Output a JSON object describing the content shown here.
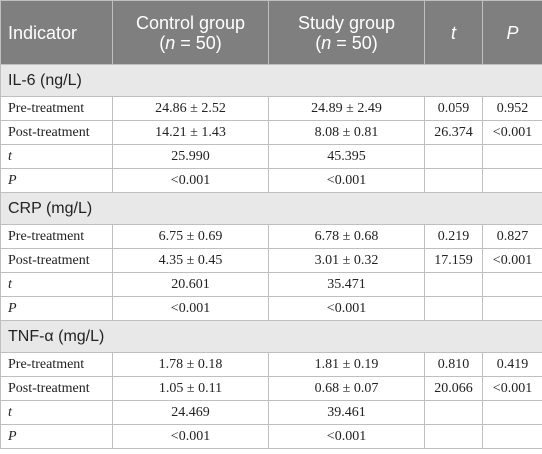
{
  "header": {
    "indicator": "Indicator",
    "control": "Control group",
    "control_n_open": "(",
    "control_n_var": "n",
    "control_n_rest": " = 50)",
    "study": "Study group",
    "study_n_open": "(",
    "study_n_var": "n",
    "study_n_rest": " = 50)",
    "t": "t",
    "p": "P"
  },
  "sections": [
    {
      "title": "IL-6 (ng/L)",
      "rows": [
        {
          "label": "Pre-treatment",
          "italic": false,
          "control": "24.86 ± 2.52",
          "study": "24.89 ± 2.49",
          "t": "0.059",
          "p": "0.952"
        },
        {
          "label": "Post-treatment",
          "italic": false,
          "control": "14.21 ± 1.43",
          "study": "8.08 ± 0.81",
          "t": "26.374",
          "p": "<0.001"
        },
        {
          "label": "t",
          "italic": true,
          "control": "25.990",
          "study": "45.395",
          "t": "",
          "p": ""
        },
        {
          "label": "P",
          "italic": true,
          "control": "<0.001",
          "study": "<0.001",
          "t": "",
          "p": ""
        }
      ]
    },
    {
      "title": "CRP (mg/L)",
      "rows": [
        {
          "label": "Pre-treatment",
          "italic": false,
          "control": "6.75 ± 0.69",
          "study": "6.78 ± 0.68",
          "t": "0.219",
          "p": "0.827"
        },
        {
          "label": "Post-treatment",
          "italic": false,
          "control": "4.35 ± 0.45",
          "study": "3.01 ± 0.32",
          "t": "17.159",
          "p": "<0.001"
        },
        {
          "label": "t",
          "italic": true,
          "control": "20.601",
          "study": "35.471",
          "t": "",
          "p": ""
        },
        {
          "label": "P",
          "italic": true,
          "control": "<0.001",
          "study": "<0.001",
          "t": "",
          "p": ""
        }
      ]
    },
    {
      "title": "TNF-α (mg/L)",
      "rows": [
        {
          "label": "Pre-treatment",
          "italic": false,
          "control": "1.78 ± 0.18",
          "study": "1.81 ± 0.19",
          "t": "0.810",
          "p": "0.419"
        },
        {
          "label": "Post-treatment",
          "italic": false,
          "control": "1.05 ± 0.11",
          "study": "0.68 ± 0.07",
          "t": "20.066",
          "p": "<0.001"
        },
        {
          "label": "t",
          "italic": true,
          "control": "24.469",
          "study": "39.461",
          "t": "",
          "p": ""
        },
        {
          "label": "P",
          "italic": true,
          "control": "<0.001",
          "study": "<0.001",
          "t": "",
          "p": ""
        }
      ]
    }
  ]
}
